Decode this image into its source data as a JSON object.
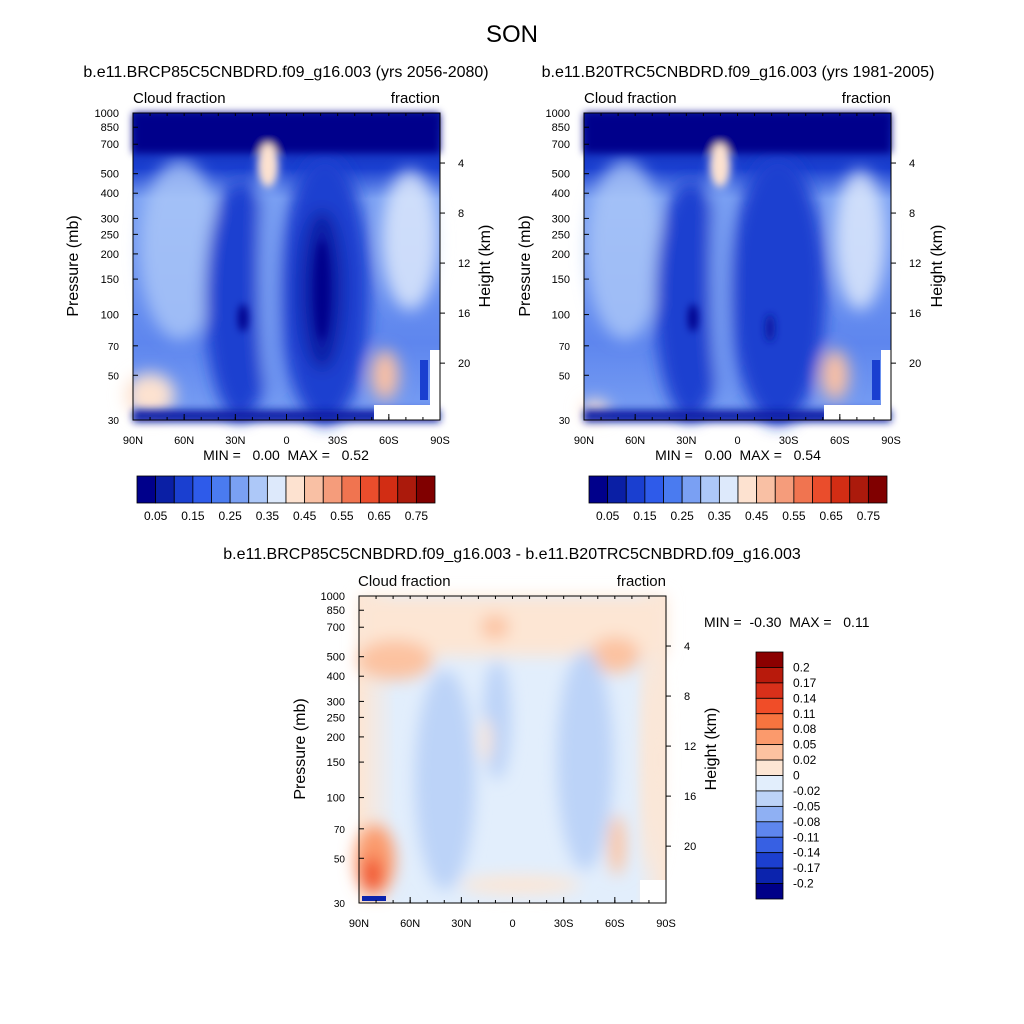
{
  "page_title": "SON",
  "chart_data": [
    {
      "type": "heatmap",
      "title": "b.e11.BRCP85C5CNBDRD.f09_g16.003 (yrs 2056-2080)",
      "left_label": "Cloud fraction",
      "right_label": "fraction",
      "xlabel": "",
      "ylabel": "Pressure (mb)",
      "y2label": "Height (km)",
      "x_ticks": [
        "90N",
        "60N",
        "30N",
        "0",
        "30S",
        "60S",
        "90S"
      ],
      "xlim": [
        90,
        -90
      ],
      "ylim_mb": [
        1000,
        30
      ],
      "y_ticks_mb": [
        "30",
        "50",
        "70",
        "100",
        "150",
        "200",
        "250",
        "300",
        "400",
        "500",
        "700",
        "850",
        "1000"
      ],
      "y2_ticks_km": [
        "20",
        "16",
        "12",
        "8",
        "4"
      ],
      "min_max_text": "MIN =   0.00  MAX =   0.52",
      "min": 0.0,
      "max": 0.52,
      "colorbar": {
        "orientation": "horizontal",
        "labels": [
          "0.05",
          "0.15",
          "0.25",
          "0.35",
          "0.45",
          "0.55",
          "0.65",
          "0.75"
        ],
        "colors": [
          "#00008b",
          "#0a1fa5",
          "#1a3fd0",
          "#2e5bea",
          "#4a7bf0",
          "#7aa0f3",
          "#adc8f8",
          "#dde9fb",
          "#fde2d0",
          "#f9c0a4",
          "#f59c7b",
          "#f07450",
          "#ea4d2c",
          "#d22d14",
          "#ab1a0c",
          "#800000"
        ]
      }
    },
    {
      "type": "heatmap",
      "title": "b.e11.B20TRC5CNBDRD.f09_g16.003 (yrs 1981-2005)",
      "left_label": "Cloud fraction",
      "right_label": "fraction",
      "xlabel": "",
      "ylabel": "Pressure (mb)",
      "y2label": "Height (km)",
      "x_ticks": [
        "90N",
        "60N",
        "30N",
        "0",
        "30S",
        "60S",
        "90S"
      ],
      "xlim": [
        90,
        -90
      ],
      "ylim_mb": [
        1000,
        30
      ],
      "y_ticks_mb": [
        "30",
        "50",
        "70",
        "100",
        "150",
        "200",
        "250",
        "300",
        "400",
        "500",
        "700",
        "850",
        "1000"
      ],
      "y2_ticks_km": [
        "20",
        "16",
        "12",
        "8",
        "4"
      ],
      "min_max_text": "MIN =   0.00  MAX =   0.54",
      "min": 0.0,
      "max": 0.54,
      "colorbar": {
        "orientation": "horizontal",
        "labels": [
          "0.05",
          "0.15",
          "0.25",
          "0.35",
          "0.45",
          "0.55",
          "0.65",
          "0.75"
        ],
        "colors": [
          "#00008b",
          "#0a1fa5",
          "#1a3fd0",
          "#2e5bea",
          "#4a7bf0",
          "#7aa0f3",
          "#adc8f8",
          "#dde9fb",
          "#fde2d0",
          "#f9c0a4",
          "#f59c7b",
          "#f07450",
          "#ea4d2c",
          "#d22d14",
          "#ab1a0c",
          "#800000"
        ]
      }
    },
    {
      "type": "heatmap",
      "title": "b.e11.BRCP85C5CNBDRD.f09_g16.003 - b.e11.B20TRC5CNBDRD.f09_g16.003",
      "left_label": "Cloud fraction",
      "right_label": "fraction",
      "xlabel": "",
      "ylabel": "Pressure (mb)",
      "y2label": "Height (km)",
      "x_ticks": [
        "90N",
        "60N",
        "30N",
        "0",
        "30S",
        "60S",
        "90S"
      ],
      "xlim": [
        90,
        -90
      ],
      "ylim_mb": [
        1000,
        30
      ],
      "y_ticks_mb": [
        "30",
        "50",
        "70",
        "100",
        "150",
        "200",
        "250",
        "300",
        "400",
        "500",
        "700",
        "850",
        "1000"
      ],
      "y2_ticks_km": [
        "20",
        "16",
        "12",
        "8",
        "4"
      ],
      "min_max_text": "MIN =  -0.30  MAX =   0.11",
      "min": -0.3,
      "max": 0.11,
      "colorbar": {
        "orientation": "vertical",
        "labels": [
          "0.2",
          "0.17",
          "0.14",
          "0.11",
          "0.08",
          "0.05",
          "0.02",
          "0",
          "-0.02",
          "-0.05",
          "-0.08",
          "-0.11",
          "-0.14",
          "-0.17",
          "-0.2"
        ],
        "colors": [
          "#8b0000",
          "#b81a0c",
          "#d8301a",
          "#f04d28",
          "#f7743f",
          "#fb9a6c",
          "#fcc2a0",
          "#fde6d4",
          "#e2eefc",
          "#bcd3f8",
          "#8fb0f3",
          "#5e86ee",
          "#3760e3",
          "#1c3fcf",
          "#0b23ad",
          "#000088"
        ]
      }
    }
  ]
}
